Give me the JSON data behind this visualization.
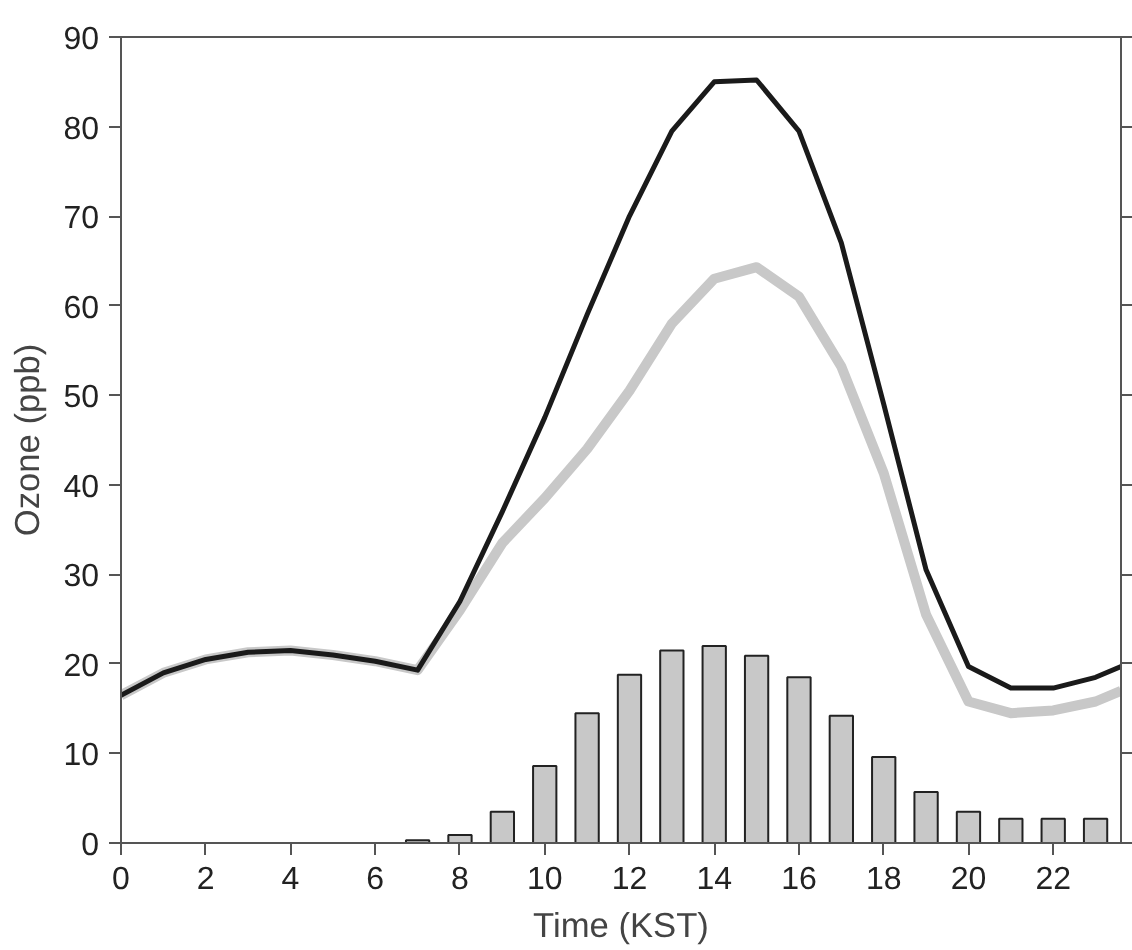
{
  "chart_data": {
    "type": "line",
    "xlabel": "Time (KST)",
    "ylabel": "Ozone (ppb)",
    "xlim": [
      0,
      23.6
    ],
    "ylim": [
      0,
      90
    ],
    "xticks": [
      0,
      2,
      4,
      6,
      8,
      10,
      12,
      14,
      16,
      18,
      20,
      22
    ],
    "yticks": [
      0,
      10,
      20,
      30,
      40,
      50,
      60,
      70,
      80,
      90
    ],
    "grid": false,
    "marker": "none",
    "line_style": "solid",
    "series": [
      {
        "type": "bar",
        "color": "#c8c8c8",
        "x": [
          7,
          8,
          9,
          10,
          11,
          12,
          13,
          14,
          15,
          16,
          17,
          18,
          19,
          20,
          21,
          22,
          23
        ],
        "values": [
          0.3,
          0.9,
          3.5,
          8.6,
          14.5,
          18.8,
          21.5,
          22.0,
          20.9,
          18.5,
          14.2,
          9.6,
          5.7,
          3.5,
          2.7,
          2.7,
          2.7
        ]
      },
      {
        "color": "#c8c8c8",
        "x": [
          0,
          1,
          2,
          3,
          4,
          5,
          6,
          7,
          8,
          9,
          10,
          11,
          12,
          13,
          14,
          15,
          16,
          17,
          18,
          19,
          20,
          21,
          22,
          23,
          23.6
        ],
        "values": [
          16.5,
          19,
          20.5,
          21.3,
          21.5,
          21,
          20.3,
          19.3,
          26,
          33.5,
          38.5,
          44,
          50.5,
          58,
          63,
          64.3,
          61,
          53.2,
          41.3,
          25.5,
          15.8,
          14.5,
          14.8,
          15.8,
          17
        ]
      },
      {
        "color": "#1a1a1a",
        "x": [
          0,
          1,
          2,
          3,
          4,
          5,
          6,
          7,
          8,
          9,
          10,
          11,
          12,
          13,
          14,
          15,
          16,
          17,
          18,
          19,
          20,
          21,
          22,
          23,
          23.6
        ],
        "values": [
          16.5,
          19,
          20.5,
          21.3,
          21.5,
          21,
          20.3,
          19.3,
          27,
          37,
          47.5,
          59,
          70,
          79.5,
          85,
          85.2,
          79.5,
          67,
          49,
          30.5,
          19.7,
          17.3,
          17.3,
          18.5,
          19.7
        ]
      }
    ]
  }
}
